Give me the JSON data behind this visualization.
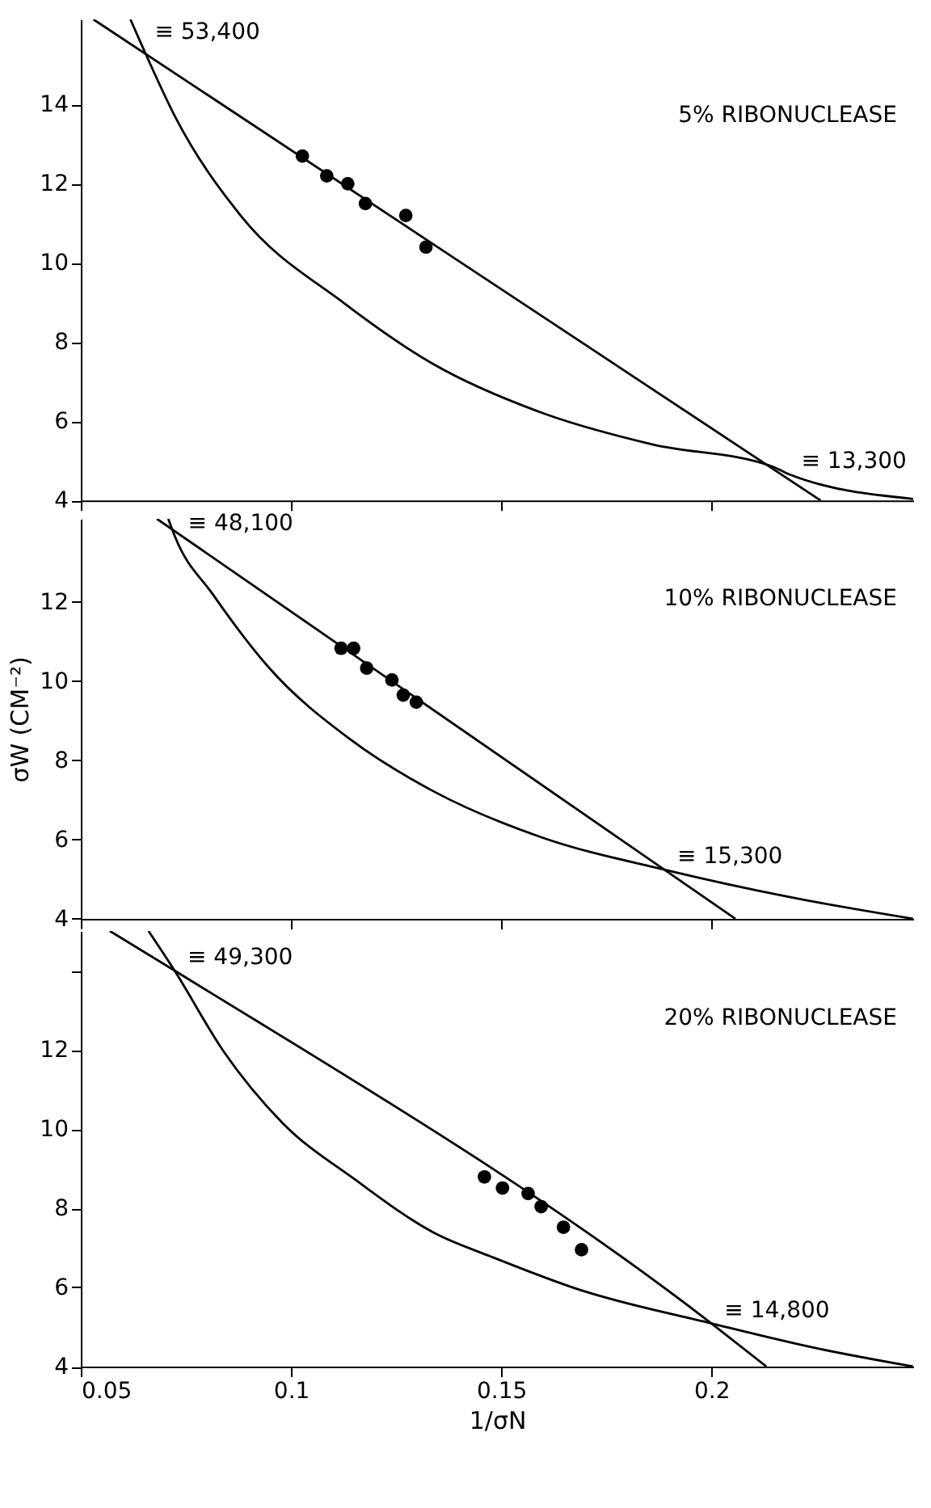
{
  "chart_data": [
    {
      "type": "scatter",
      "xlim": [
        0.05,
        0.248
      ],
      "ylim": [
        4,
        16.15
      ],
      "xticks": [
        0.05,
        0.1,
        0.15,
        0.2
      ],
      "yticks": [
        4,
        6,
        8,
        10,
        12,
        14
      ],
      "tick_labels": "y",
      "grid": false,
      "series": [
        {
          "marker": "circle",
          "color": "#000000",
          "x": [
            0.1027,
            0.1085,
            0.1135,
            0.1177,
            0.1273,
            0.1321
          ],
          "values": [
            12.7,
            12.2,
            12.0,
            11.5,
            11.2,
            10.4
          ]
        },
        {
          "type": "line",
          "marker": "none",
          "line_style": "solid",
          "color": "#000000",
          "x": [
            0.053,
            0.226
          ],
          "values": [
            16.15,
            4
          ]
        },
        {
          "type": "line",
          "marker": "none",
          "line_style": "solid",
          "color": "#000000",
          "x": [
            0.0618,
            0.0645,
            0.0724,
            0.088,
            0.1128,
            0.1336,
            0.1598,
            0.1859,
            0.2145,
            0.2183,
            0.248
          ],
          "values": [
            16.15,
            15.5,
            13.7,
            11.2,
            8.97,
            7.46,
            6.21,
            5.42,
            4.86,
            4.67,
            4.04
          ]
        }
      ],
      "annotations": [
        "5% RIBONUCLEASE",
        {
          "text": "≡ 53,400",
          "x": 0.0645,
          "y": 15.5
        },
        {
          "text": "≡ 13,300",
          "x": 0.2183,
          "y": 4.67
        }
      ]
    },
    {
      "type": "scatter",
      "xlim": [
        0.05,
        0.248
      ],
      "ylim": [
        4,
        14.1
      ],
      "xticks": [
        0.05,
        0.1,
        0.15,
        0.2
      ],
      "yticks": [
        4,
        6,
        8,
        10,
        12
      ],
      "tick_labels": "y",
      "grid": false,
      "ylabel": "σW (CM⁻²)",
      "series": [
        {
          "marker": "circle",
          "color": "#000000",
          "x": [
            0.1119,
            0.1149,
            0.118,
            0.124,
            0.1267,
            0.1298
          ],
          "values": [
            10.83,
            10.83,
            10.33,
            10.03,
            9.65,
            9.47
          ]
        },
        {
          "type": "line",
          "marker": "none",
          "line_style": "solid",
          "color": "#000000",
          "x": [
            0.0681,
            0.2057
          ],
          "values": [
            14.1,
            4
          ]
        },
        {
          "type": "line",
          "marker": "none",
          "line_style": "solid",
          "color": "#000000",
          "x": [
            0.0708,
            0.0724,
            0.0815,
            0.0946,
            0.1141,
            0.1337,
            0.1598,
            0.1888,
            0.2185,
            0.248
          ],
          "values": [
            14.1,
            13.65,
            12.18,
            10.36,
            8.53,
            7.23,
            6.05,
            5.24,
            4.55,
            4.0
          ]
        }
      ],
      "annotations": [
        "10% RIBONUCLEASE",
        {
          "text": "≡ 48,100",
          "x": 0.0724,
          "y": 13.65
        },
        {
          "text": "≡ 15,300",
          "x": 0.1888,
          "y": 5.24
        }
      ]
    },
    {
      "type": "scatter",
      "xlim": [
        0.05,
        0.248
      ],
      "ylim": [
        4,
        15
      ],
      "xticks": [
        0.05,
        0.1,
        0.15,
        0.2
      ],
      "yticks": [
        4,
        6,
        8,
        10,
        12,
        {
          "value": 14,
          "label": null
        }
      ],
      "grid": false,
      "xlabel": "1/σN",
      "series": [
        {
          "marker": "circle",
          "color": "#000000",
          "x": [
            0.146,
            0.1503,
            0.1564,
            0.1595,
            0.1648,
            0.1691
          ],
          "values": [
            8.79,
            8.51,
            8.37,
            8.04,
            7.52,
            6.95
          ]
        },
        {
          "type": "line",
          "marker": "none",
          "line_style": "solid",
          "color": "#000000",
          "x": [
            0.0569,
            0.0723,
            0.2,
            0.2131
          ],
          "values": [
            15,
            14.0,
            5.09,
            4
          ]
        },
        {
          "type": "line",
          "marker": "none",
          "line_style": "solid",
          "color": "#000000",
          "x": [
            0.0661,
            0.0723,
            0.0839,
            0.098,
            0.115,
            0.1347,
            0.1475,
            0.1686,
            0.2,
            0.2251,
            0.248
          ],
          "values": [
            15,
            14.0,
            11.97,
            10.15,
            8.74,
            7.34,
            6.78,
            5.94,
            5.09,
            4.46,
            4.0
          ]
        }
      ],
      "annotations": [
        "20% RIBONUCLEASE",
        {
          "text": "≡ 49,300",
          "x": 0.0723,
          "y": 14.0
        },
        {
          "text": "≡ 14,800",
          "x": 0.2,
          "y": 5.09
        }
      ]
    }
  ]
}
